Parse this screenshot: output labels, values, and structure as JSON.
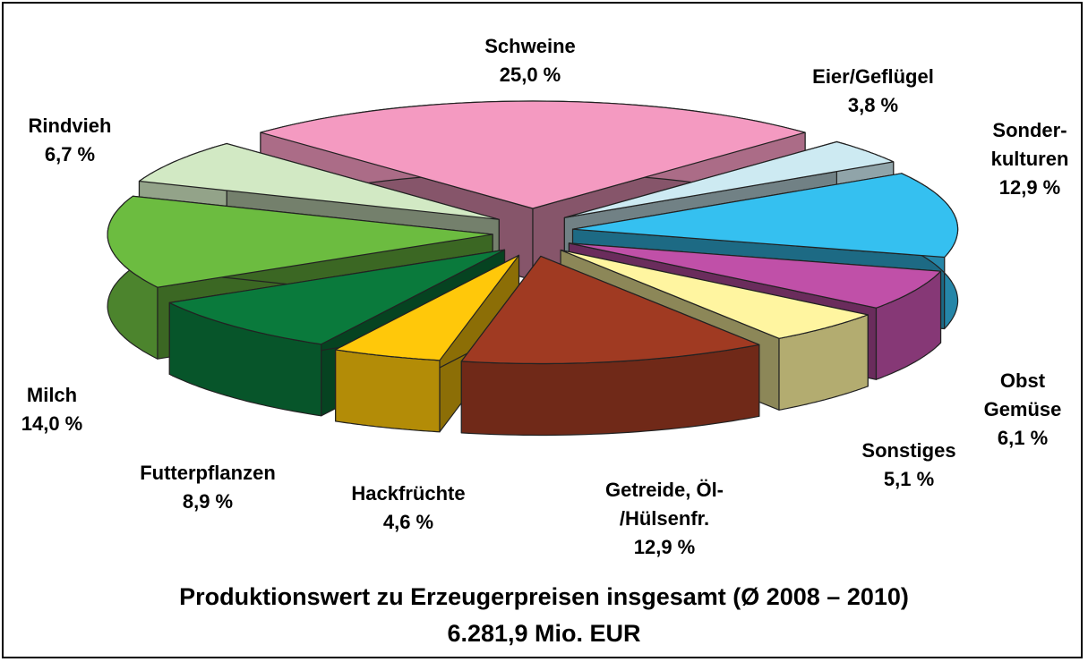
{
  "chart_data": {
    "type": "pie3d",
    "title": "Produktionswert zu Erzeugerpreisen insgesamt (Ø 2008 – 2010)",
    "subtitle": "6.281,9 Mio. EUR",
    "categories": [
      "Schweine",
      "Eier/Geflügel",
      "Sonder-\nkulturen",
      "Obst\nGemüse",
      "Sonstiges",
      "Getreide, Öl-\n/Hülsenfr.",
      "Hackfrüchte",
      "Futterpflanzen",
      "Milch",
      "Rindvieh"
    ],
    "values": [
      25.0,
      3.8,
      12.9,
      6.1,
      5.1,
      12.9,
      4.6,
      8.9,
      14.0,
      6.7
    ],
    "value_labels": [
      "25,0 %",
      "3,8 %",
      "12,9 %",
      "6,1 %",
      "5,1 %",
      "12,9 %",
      "4,6 %",
      "8,9 %",
      "14,0 %",
      "6,7 %"
    ],
    "colors": [
      "#f49ac1",
      "#cdeaf2",
      "#35c0f0",
      "#c050a8",
      "#fff5a0",
      "#a03a22",
      "#ffc80a",
      "#0a7a3c",
      "#6cbc40",
      "#d2e9c4"
    ]
  }
}
